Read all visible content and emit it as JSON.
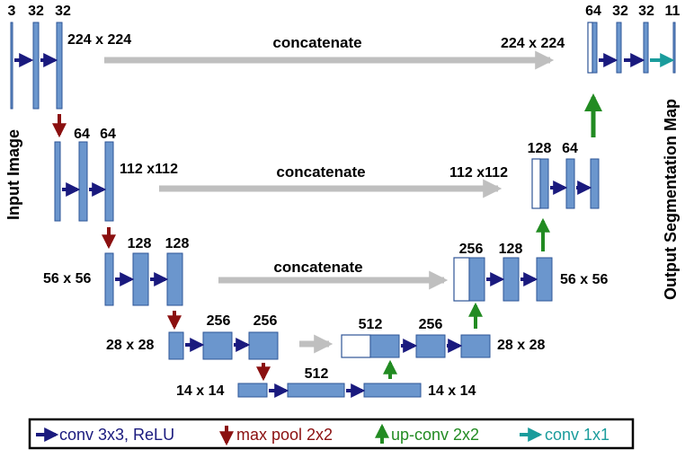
{
  "colors": {
    "box_fill": "#6b96cd",
    "box_stroke": "#2e5597",
    "conv": "#1a1a7e",
    "maxpool": "#8b1010",
    "upconv": "#228b22",
    "conv1x1": "#1a9c9c",
    "concat": "#bfbfbf"
  },
  "side_labels": {
    "input": "Input Image",
    "output": "Output Segmentation Map"
  },
  "channel_labels": {
    "l1_in": "3",
    "l1_a": "32",
    "l1_b": "32",
    "l2_a": "64",
    "l2_b": "64",
    "l3_a": "128",
    "l3_b": "128",
    "l4_a": "256",
    "l4_b": "256",
    "l5": "512",
    "u4_cat": "512",
    "u4_conv": "256",
    "u3_cat": "256",
    "u3_conv": "128",
    "u2_cat": "128",
    "u2_conv": "64",
    "u1_cat": "64",
    "u1_a": "32",
    "u1_b": "32",
    "u1_out": "11"
  },
  "size_labels": {
    "enc1": "224 x 224",
    "enc2": "112 x112",
    "enc3": "56 x 56",
    "enc4": "28 x 28",
    "bott_left": "14 x 14",
    "bott_right": "14 x 14",
    "dec4": "28 x 28",
    "dec3": "56 x 56",
    "dec2": "112 x112",
    "dec1": "224 x 224"
  },
  "concat_labels": {
    "level1": "concatenate",
    "level2": "concatenate",
    "level3": "concatenate"
  },
  "legend": {
    "conv": "conv 3x3, ReLU",
    "maxpool": "max pool 2x2",
    "upconv": "up-conv 2x2",
    "conv1x1": "conv 1x1"
  }
}
